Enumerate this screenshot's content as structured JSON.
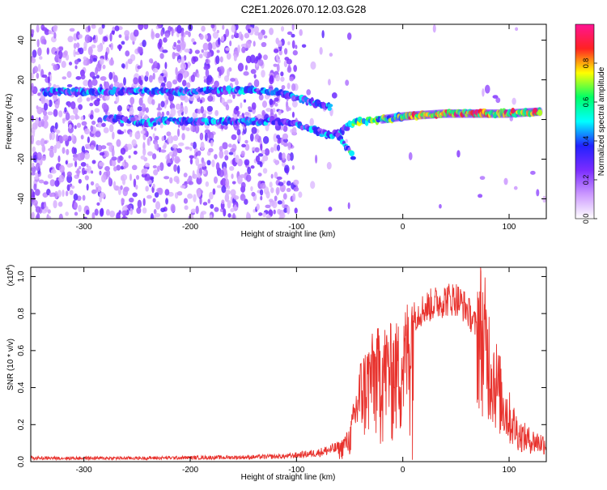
{
  "title": "C2E1.2026.070.12.03.G28",
  "chart_data": [
    {
      "type": "heatmap",
      "title": "C2E1.2026.070.12.03.G28",
      "xlabel": "Height of straight line (km)",
      "ylabel": "Frequency (Hz)",
      "xlim": [
        -350,
        135
      ],
      "ylim": [
        -50,
        48
      ],
      "xticks": [
        -300,
        -200,
        -100,
        0,
        100
      ],
      "yticks": [
        -40,
        -20,
        0,
        20,
        40
      ],
      "colorbar": {
        "label": "Normalized spectral amplitude",
        "range": [
          0,
          1
        ],
        "ticks": [
          0.0,
          0.2,
          0.4,
          0.6,
          0.8
        ],
        "tick_labels": [
          "0.0",
          "0.2",
          "0.4",
          "0.6",
          "0.8"
        ],
        "colormap": [
          "#ffffff",
          "#cc99ff",
          "#7b2cff",
          "#2222ff",
          "#00ffff",
          "#00ff66",
          "#ffff00",
          "#ff2222",
          "#ff1493"
        ]
      },
      "signal_tracks": [
        {
          "x": [
            -340,
            -300,
            -250,
            -200,
            -150,
            -120,
            -100,
            -80,
            -68
          ],
          "y": [
            14,
            14,
            14,
            14,
            15,
            14,
            11,
            8,
            6
          ]
        },
        {
          "x": [
            -280,
            -260,
            -245,
            -230,
            -200,
            -150,
            -110,
            -95,
            -80,
            -70,
            -60,
            -50,
            -40,
            -20,
            0,
            10,
            40,
            80,
            100,
            130
          ],
          "y": [
            1,
            0,
            -2,
            -1,
            -1,
            -1,
            -1,
            -3,
            -6,
            -8,
            -7,
            -3,
            -1,
            0,
            1.5,
            2,
            3,
            3,
            3,
            4
          ]
        },
        {
          "x": [
            -60,
            -55,
            -50,
            -47
          ],
          "y": [
            -9,
            -13,
            -16,
            -19
          ]
        }
      ]
    },
    {
      "type": "line",
      "xlabel": "Height of straight line (km)",
      "ylabel": "SNR (10 * v/v)",
      "y_multiplier_label": "(x10",
      "y_multiplier_exp": "4",
      "y_multiplier_close": ")",
      "xlim": [
        -350,
        135
      ],
      "ylim": [
        0,
        1.05
      ],
      "xticks": [
        -300,
        -200,
        -100,
        0,
        100
      ],
      "yticks": [
        0.0,
        0.2,
        0.4,
        0.6,
        0.8,
        1.0
      ],
      "ytick_labels": [
        "0.0",
        "0.2",
        "0.4",
        "0.6",
        "0.8",
        "1.0"
      ],
      "series_color": "#e8322d",
      "envelope": {
        "x": [
          -350,
          -250,
          -150,
          -110,
          -80,
          -60,
          -50,
          -45,
          -40,
          -30,
          -20,
          -10,
          0,
          10,
          20,
          30,
          40,
          50,
          60,
          70,
          80,
          90,
          100,
          110,
          120,
          135
        ],
        "y": [
          0.02,
          0.02,
          0.025,
          0.03,
          0.05,
          0.08,
          0.15,
          0.3,
          0.45,
          0.55,
          0.6,
          0.6,
          0.62,
          0.85,
          0.9,
          0.93,
          0.95,
          0.96,
          0.9,
          0.78,
          0.6,
          0.4,
          0.25,
          0.15,
          0.12,
          0.1
        ]
      }
    }
  ]
}
